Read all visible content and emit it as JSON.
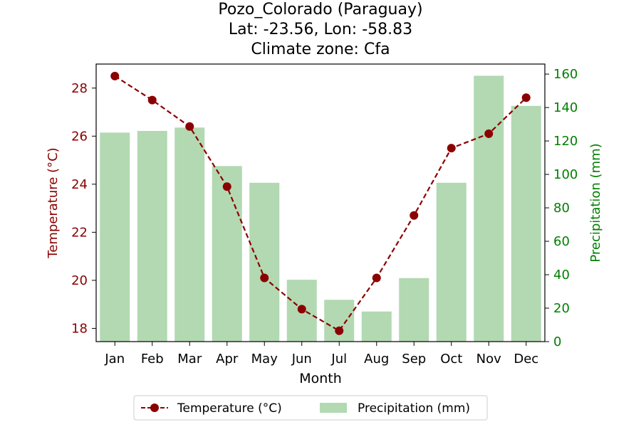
{
  "chart_data": {
    "type": "bar+line",
    "title_lines": [
      "Pozo_Colorado (Paraguay)",
      "Lat: -23.56, Lon: -58.83",
      "Climate zone: Cfa"
    ],
    "xlabel": "Month",
    "ylabel_left": "Temperature (°C)",
    "ylabel_right": "Precipitation (mm)",
    "categories": [
      "Jan",
      "Feb",
      "Mar",
      "Apr",
      "May",
      "Jun",
      "Jul",
      "Aug",
      "Sep",
      "Oct",
      "Nov",
      "Dec"
    ],
    "series": [
      {
        "name": "Temperature (°C)",
        "type": "line",
        "axis": "left",
        "color": "#8b0000",
        "values": [
          28.5,
          27.5,
          26.4,
          23.9,
          20.1,
          18.8,
          17.9,
          20.1,
          22.7,
          25.5,
          26.1,
          27.6
        ]
      },
      {
        "name": "Precipitation (mm)",
        "type": "bar",
        "axis": "right",
        "color": "#b2d9b2",
        "values": [
          125,
          126,
          128,
          105,
          95,
          37,
          25,
          18,
          38,
          95,
          159,
          141
        ]
      }
    ],
    "ylim_left": [
      17.45,
      29.0
    ],
    "ylim_right": [
      0,
      166
    ],
    "yticks_left": [
      "18",
      "20",
      "22",
      "24",
      "26",
      "28"
    ],
    "yticks_right": [
      "0",
      "20",
      "40",
      "60",
      "80",
      "100",
      "120",
      "140",
      "160"
    ],
    "grid": false,
    "legend_position": "bottom-center"
  }
}
